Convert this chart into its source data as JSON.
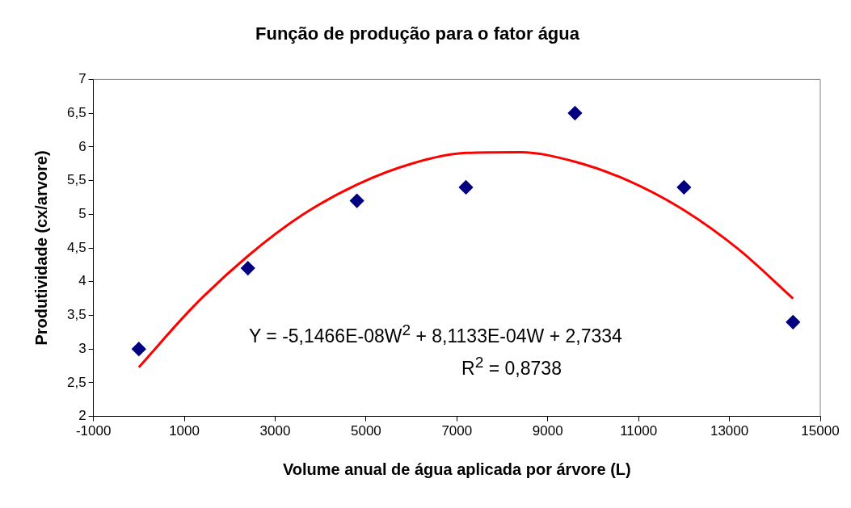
{
  "chart_data": {
    "type": "scatter",
    "title": "Função de produção para o fator água",
    "xlabel": "Volume anual de água aplicada por árvore (L)",
    "ylabel": "Produtividade (cx/arvore)",
    "series": [
      {
        "type": "scatter",
        "color": "#000080",
        "marker": "diamond",
        "x": [
          0,
          2400,
          4800,
          7200,
          9600,
          12000,
          14400
        ],
        "values": [
          3.0,
          4.2,
          5.2,
          5.4,
          6.5,
          5.4,
          3.4
        ]
      },
      {
        "type": "line",
        "color": "#ff0000",
        "marker": "none",
        "x": [
          0,
          1200,
          2400,
          3600,
          4800,
          6000,
          7200,
          8400,
          9600,
          10800,
          12000,
          13200,
          14400
        ],
        "values": [
          2.73,
          3.63,
          4.38,
          4.99,
          5.44,
          5.75,
          5.91,
          5.92,
          5.78,
          5.49,
          5.06,
          4.48,
          3.75
        ]
      }
    ],
    "xlim": [
      -1000,
      15000
    ],
    "xticks": [
      -1000,
      1000,
      3000,
      5000,
      7000,
      9000,
      11000,
      13000,
      15000
    ],
    "ylim": [
      2,
      7
    ],
    "yticks": [
      2,
      {
        "value": 2.5,
        "label": "2,5"
      },
      3,
      {
        "value": 3.5,
        "label": "3,5"
      },
      4,
      {
        "value": 4.5,
        "label": "4,5"
      },
      5,
      {
        "value": 5.5,
        "label": "5,5"
      },
      6,
      {
        "value": 6.5,
        "label": "6,5"
      },
      7
    ],
    "annotations": [
      "Y = -5,1466E-08W$^{2}$ + 8,1133E-04W + 2,7334",
      "R$^{2}$ = 0,8738"
    ],
    "grid": false,
    "legend": false
  }
}
